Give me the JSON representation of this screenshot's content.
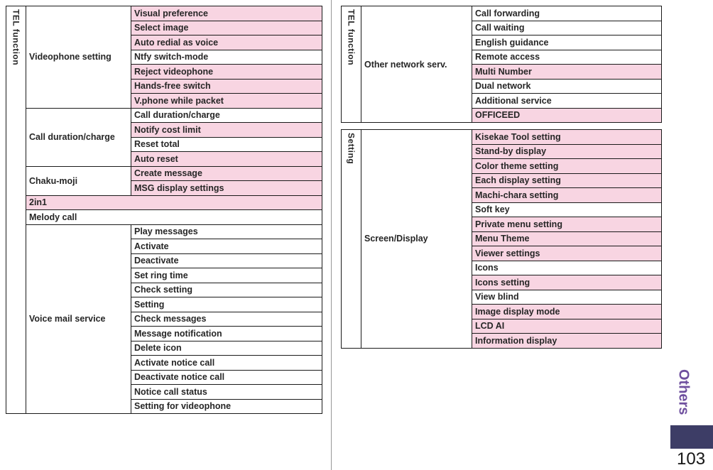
{
  "tab_label": "Others",
  "page_number": "103",
  "colors": {
    "highlight_pink": "#f8d5e2",
    "tab_block": "#3d3d66",
    "tab_text": "#6e4f9e",
    "border": "#1a1a1a",
    "text": "#262626"
  },
  "tables": [
    {
      "name": "tel-function-table-left",
      "group_label": "TEL function",
      "sections": [
        {
          "category": "Videophone setting",
          "items": [
            {
              "label": "Visual preference",
              "pink": true
            },
            {
              "label": "Select image",
              "pink": true
            },
            {
              "label": "Auto redial as voice",
              "pink": true
            },
            {
              "label": "Ntfy switch-mode",
              "pink": false
            },
            {
              "label": "Reject videophone",
              "pink": true
            },
            {
              "label": "Hands-free switch",
              "pink": true
            },
            {
              "label": "V.phone while packet",
              "pink": true
            }
          ]
        },
        {
          "category": "Call duration/charge",
          "items": [
            {
              "label": "Call duration/charge",
              "pink": false
            },
            {
              "label": "Notify cost limit",
              "pink": true
            },
            {
              "label": "Reset total",
              "pink": false
            },
            {
              "label": "Auto reset",
              "pink": true
            }
          ]
        },
        {
          "category": "Chaku-moji",
          "items": [
            {
              "label": "Create message",
              "pink": true
            },
            {
              "label": "MSG display settings",
              "pink": true
            }
          ]
        },
        {
          "category": "2in1",
          "pink": true
        },
        {
          "category": "Melody call",
          "pink": false
        },
        {
          "category": "Voice mail service",
          "items": [
            {
              "label": "Play messages",
              "pink": false
            },
            {
              "label": "Activate",
              "pink": false
            },
            {
              "label": "Deactivate",
              "pink": false
            },
            {
              "label": "Set ring time",
              "pink": false
            },
            {
              "label": "Check setting",
              "pink": false
            },
            {
              "label": "Setting",
              "pink": false
            },
            {
              "label": "Check messages",
              "pink": false
            },
            {
              "label": "Message notification",
              "pink": false
            },
            {
              "label": "Delete icon",
              "pink": false
            },
            {
              "label": "Activate notice call",
              "pink": false
            },
            {
              "label": "Deactivate notice call",
              "pink": false
            },
            {
              "label": "Notice call status",
              "pink": false
            },
            {
              "label": "Setting for videophone",
              "pink": false
            }
          ]
        }
      ]
    },
    {
      "name": "tel-function-table-right",
      "group_label": "TEL function",
      "sections": [
        {
          "category": "Other network serv.",
          "items": [
            {
              "label": "Call forwarding",
              "pink": false
            },
            {
              "label": "Call waiting",
              "pink": false
            },
            {
              "label": "English guidance",
              "pink": false
            },
            {
              "label": "Remote access",
              "pink": false
            },
            {
              "label": "Multi Number",
              "pink": true
            },
            {
              "label": "Dual network",
              "pink": false
            },
            {
              "label": "Additional service",
              "pink": false
            },
            {
              "label": "OFFICEED",
              "pink": true
            }
          ]
        }
      ]
    },
    {
      "name": "setting-table-right",
      "group_label": "Setting",
      "sections": [
        {
          "category": "Screen/Display",
          "items": [
            {
              "label": "Kisekae Tool setting",
              "pink": true
            },
            {
              "label": "Stand-by display",
              "pink": true
            },
            {
              "label": "Color theme setting",
              "pink": true
            },
            {
              "label": "Each display setting",
              "pink": true
            },
            {
              "label": "Machi-chara setting",
              "pink": true
            },
            {
              "label": "Soft key",
              "pink": false
            },
            {
              "label": "Private menu setting",
              "pink": true
            },
            {
              "label": "Menu Theme",
              "pink": true
            },
            {
              "label": "Viewer settings",
              "pink": true
            },
            {
              "label": "Icons",
              "pink": false
            },
            {
              "label": "Icons setting",
              "pink": true
            },
            {
              "label": "View blind",
              "pink": false
            },
            {
              "label": "Image display mode",
              "pink": true
            },
            {
              "label": "LCD AI",
              "pink": true
            },
            {
              "label": "Information display",
              "pink": true
            }
          ]
        }
      ]
    }
  ]
}
